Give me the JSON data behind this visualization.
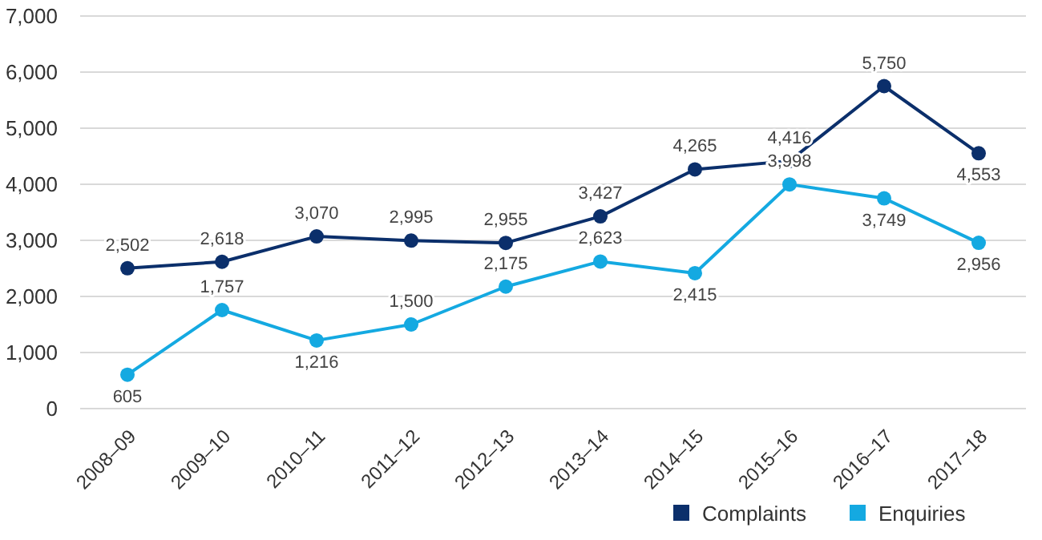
{
  "chart_data": {
    "type": "line",
    "categories": [
      "2008–09",
      "2009–10",
      "2010–11",
      "2011–12",
      "2012–13",
      "2013–14",
      "2014–15",
      "2015–16",
      "2016–17",
      "2017–18"
    ],
    "series": [
      {
        "name": "Complaints",
        "color": "#0b2f6b",
        "values": [
          2502,
          2618,
          3070,
          2995,
          2955,
          3427,
          4265,
          4416,
          5750,
          4553
        ],
        "value_labels": [
          "2,502",
          "2,618",
          "3,070",
          "2,995",
          "2,955",
          "3,427",
          "4,265",
          "4,416",
          "5,750",
          "4,553"
        ]
      },
      {
        "name": "Enquiries",
        "color": "#14a9e1",
        "values": [
          605,
          1757,
          1216,
          1500,
          2175,
          2623,
          2415,
          3998,
          3749,
          2956
        ],
        "value_labels": [
          "605",
          "1,757",
          "1,216",
          "1,500",
          "2,175",
          "2,623",
          "2,415",
          "3,998",
          "3,749",
          "2,956"
        ]
      }
    ],
    "ylim": [
      0,
      7000
    ],
    "yticks": [
      {
        "value": 0,
        "label": "0"
      },
      {
        "value": 1000,
        "label": "1,000"
      },
      {
        "value": 2000,
        "label": "2,000"
      },
      {
        "value": 3000,
        "label": "3,000"
      },
      {
        "value": 4000,
        "label": "4,000"
      },
      {
        "value": 5000,
        "label": "5,000"
      },
      {
        "value": 6000,
        "label": "6,000"
      },
      {
        "value": 7000,
        "label": "7,000"
      }
    ],
    "grid": "y",
    "legend": "bottom right",
    "marker": "circle",
    "line_style": "solid"
  }
}
